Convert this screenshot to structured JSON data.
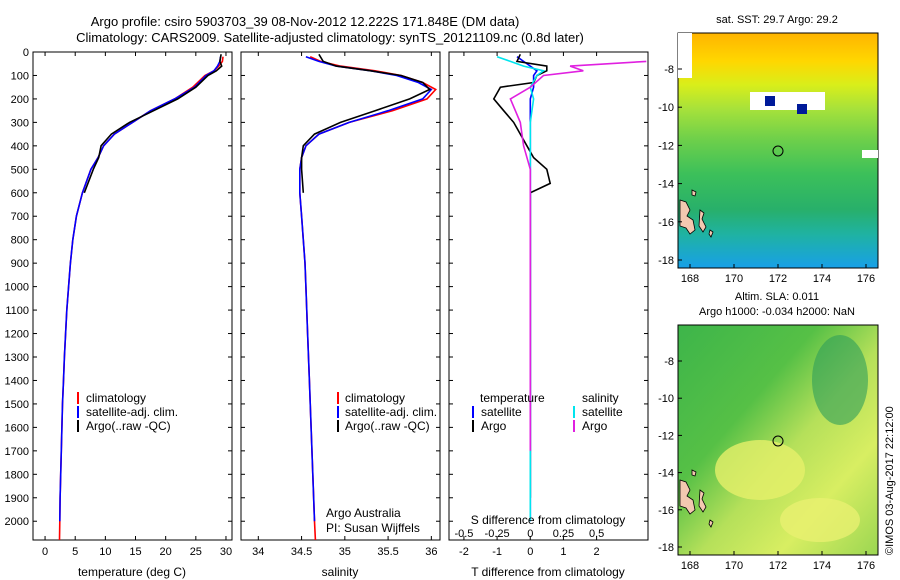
{
  "header": {
    "line1": "Argo profile: csiro 5903703_39 08-Nov-2012 12.222S 171.848E (DM data)",
    "line2": "Climatology: CARS2009. Satellite-adjusted climatology: synTS_20121109.nc (0.8d later)"
  },
  "depth_ticks": [
    0,
    100,
    200,
    300,
    400,
    500,
    600,
    700,
    800,
    900,
    1000,
    1100,
    1200,
    1300,
    1400,
    1500,
    1600,
    1700,
    1800,
    1900,
    2000
  ],
  "colors": {
    "climatology": "#ff0000",
    "satellite": "#0000ff",
    "argo": "#000000",
    "salinity_sat": "#00e5ee",
    "salinity_argo": "#e020e0"
  },
  "legend_ts": {
    "climatology": "climatology",
    "satellite": "satellite-adj. clim.",
    "argo": "Argo(..raw -QC)"
  },
  "legend_diff": {
    "temperature": "temperature",
    "salinity": "salinity",
    "satellite": "satellite",
    "argo": "Argo"
  },
  "annotation": {
    "org": "Argo Australia",
    "pi": "PI: Susan Wijffels"
  },
  "maps": {
    "sst_title": "sat. SST: 29.7 Argo: 29.2",
    "sla_title1": "Altim. SLA: 0.011",
    "sla_title2": "Argo h1000: -0.034 h2000: NaN",
    "x_ticks": [
      "168",
      "170",
      "172",
      "174",
      "176"
    ],
    "y_ticks": [
      "-8",
      "-10",
      "-12",
      "-14",
      "-16",
      "-18"
    ],
    "float_marker": "circle"
  },
  "side_label": "©IMOS 03-Aug-2017 22:12:00",
  "chart_data": [
    {
      "type": "line",
      "name": "temperature",
      "xlabel": "temperature (deg C)",
      "ylabel": "",
      "xlim": [
        -2,
        31
      ],
      "ylim": [
        2080,
        0
      ],
      "xticks": [
        0,
        5,
        10,
        15,
        20,
        25,
        30
      ],
      "series": [
        {
          "name": "climatology",
          "color": "#ff0000",
          "points": [
            [
              29.5,
              20
            ],
            [
              29.4,
              40
            ],
            [
              28.8,
              60
            ],
            [
              28.0,
              80
            ],
            [
              26.5,
              100
            ],
            [
              24.5,
              150
            ],
            [
              21.5,
              200
            ],
            [
              17.5,
              250
            ],
            [
              14.5,
              300
            ],
            [
              11.5,
              350
            ],
            [
              9.7,
              400
            ],
            [
              8.8,
              450
            ],
            [
              7.6,
              500
            ],
            [
              6.2,
              600
            ],
            [
              5.2,
              700
            ],
            [
              4.6,
              800
            ],
            [
              4.2,
              900
            ],
            [
              3.9,
              1000
            ],
            [
              3.6,
              1100
            ],
            [
              3.4,
              1200
            ],
            [
              3.2,
              1300
            ],
            [
              3.05,
              1400
            ],
            [
              2.9,
              1500
            ],
            [
              2.8,
              1600
            ],
            [
              2.7,
              1700
            ],
            [
              2.6,
              1800
            ],
            [
              2.5,
              1900
            ],
            [
              2.45,
              2000
            ],
            [
              2.4,
              2080
            ]
          ]
        },
        {
          "name": "satellite-adj. clim.",
          "color": "#0000ff",
          "points": [
            [
              29.1,
              20
            ],
            [
              29.0,
              40
            ],
            [
              28.6,
              60
            ],
            [
              28.0,
              80
            ],
            [
              26.7,
              100
            ],
            [
              24.8,
              150
            ],
            [
              21.5,
              200
            ],
            [
              17.5,
              250
            ],
            [
              14.5,
              300
            ],
            [
              11.5,
              350
            ],
            [
              9.7,
              400
            ],
            [
              8.8,
              450
            ],
            [
              7.6,
              500
            ],
            [
              6.2,
              600
            ],
            [
              5.2,
              700
            ],
            [
              4.6,
              800
            ],
            [
              4.2,
              900
            ],
            [
              3.9,
              1000
            ],
            [
              3.6,
              1100
            ],
            [
              3.4,
              1200
            ],
            [
              3.2,
              1300
            ],
            [
              3.05,
              1400
            ],
            [
              2.9,
              1500
            ],
            [
              2.8,
              1600
            ],
            [
              2.7,
              1700
            ],
            [
              2.6,
              1800
            ],
            [
              2.5,
              1900
            ],
            [
              2.45,
              2000
            ]
          ]
        },
        {
          "name": "Argo(..raw -QC)",
          "color": "#000000",
          "points": [
            [
              29.2,
              10
            ],
            [
              29.0,
              40
            ],
            [
              29.3,
              60
            ],
            [
              28.4,
              80
            ],
            [
              27.0,
              100
            ],
            [
              25.0,
              150
            ],
            [
              22.0,
              200
            ],
            [
              18.0,
              250
            ],
            [
              14.0,
              300
            ],
            [
              11.0,
              350
            ],
            [
              9.3,
              400
            ],
            [
              8.9,
              450
            ],
            [
              8.0,
              500
            ],
            [
              6.5,
              600
            ]
          ]
        }
      ]
    },
    {
      "type": "line",
      "name": "salinity",
      "xlabel": "salinity",
      "ylabel": "",
      "xlim": [
        33.8,
        36.1
      ],
      "ylim": [
        2080,
        0
      ],
      "xticks": [
        34,
        34.5,
        35,
        35.5,
        36
      ],
      "series": [
        {
          "name": "climatology",
          "color": "#ff0000",
          "points": [
            [
              34.6,
              20
            ],
            [
              34.72,
              40
            ],
            [
              34.95,
              60
            ],
            [
              35.35,
              80
            ],
            [
              35.65,
              100
            ],
            [
              35.9,
              130
            ],
            [
              36.05,
              160
            ],
            [
              35.95,
              200
            ],
            [
              35.55,
              250
            ],
            [
              35.05,
              300
            ],
            [
              34.7,
              350
            ],
            [
              34.55,
              400
            ],
            [
              34.5,
              450
            ],
            [
              34.48,
              500
            ],
            [
              34.48,
              600
            ],
            [
              34.5,
              700
            ],
            [
              34.52,
              800
            ],
            [
              34.54,
              900
            ],
            [
              34.55,
              1000
            ],
            [
              34.57,
              1200
            ],
            [
              34.59,
              1400
            ],
            [
              34.61,
              1600
            ],
            [
              34.63,
              1800
            ],
            [
              34.65,
              2000
            ],
            [
              34.66,
              2080
            ]
          ]
        },
        {
          "name": "satellite-adj. clim.",
          "color": "#0000ff",
          "points": [
            [
              34.55,
              20
            ],
            [
              34.7,
              40
            ],
            [
              34.9,
              60
            ],
            [
              35.3,
              80
            ],
            [
              35.6,
              100
            ],
            [
              35.85,
              130
            ],
            [
              36.0,
              160
            ],
            [
              35.9,
              200
            ],
            [
              35.5,
              250
            ],
            [
              35.05,
              300
            ],
            [
              34.7,
              350
            ],
            [
              34.55,
              400
            ],
            [
              34.5,
              450
            ],
            [
              34.48,
              500
            ],
            [
              34.48,
              600
            ],
            [
              34.5,
              700
            ],
            [
              34.52,
              800
            ],
            [
              34.54,
              900
            ],
            [
              34.55,
              1000
            ],
            [
              34.57,
              1200
            ],
            [
              34.59,
              1400
            ],
            [
              34.61,
              1600
            ],
            [
              34.63,
              1800
            ],
            [
              34.65,
              2000
            ]
          ]
        },
        {
          "name": "Argo(..raw -QC)",
          "color": "#000000",
          "points": [
            [
              34.7,
              10
            ],
            [
              34.75,
              40
            ],
            [
              34.9,
              60
            ],
            [
              35.3,
              80
            ],
            [
              35.65,
              100
            ],
            [
              35.9,
              130
            ],
            [
              35.98,
              160
            ],
            [
              35.75,
              200
            ],
            [
              35.35,
              250
            ],
            [
              34.95,
              300
            ],
            [
              34.65,
              350
            ],
            [
              34.52,
              400
            ],
            [
              34.5,
              450
            ],
            [
              34.5,
              500
            ],
            [
              34.52,
              600
            ]
          ]
        }
      ]
    },
    {
      "type": "line",
      "name": "difference",
      "xlabel": "T difference from climatology",
      "xlabel2": "S difference from climatology",
      "xlim": [
        -2.45,
        3.55
      ],
      "ylim": [
        2080,
        0
      ],
      "xticks": [
        -2,
        -1,
        0,
        1,
        2
      ],
      "xticks_s": [
        "-0.5",
        "-0.25",
        "0",
        "0.25",
        "0.5"
      ],
      "xticks_s_pos": [
        -2,
        -1,
        0,
        1,
        2
      ],
      "series": [
        {
          "name": "temperature satellite",
          "color": "#0000ff",
          "points": [
            [
              -0.4,
              20
            ],
            [
              -0.2,
              40
            ],
            [
              0.0,
              60
            ],
            [
              0.2,
              80
            ],
            [
              0.1,
              100
            ],
            [
              0.1,
              150
            ],
            [
              0.0,
              200
            ],
            [
              0.0,
              300
            ],
            [
              0.0,
              500
            ],
            [
              0.0,
              1000
            ],
            [
              0.0,
              1500
            ],
            [
              0.0,
              2000
            ]
          ]
        },
        {
          "name": "temperature Argo",
          "color": "#000000",
          "points": [
            [
              -0.3,
              10
            ],
            [
              -0.4,
              40
            ],
            [
              0.5,
              60
            ],
            [
              0.5,
              80
            ],
            [
              0.2,
              100
            ],
            [
              0.1,
              130
            ],
            [
              -0.9,
              150
            ],
            [
              -1.1,
              200
            ],
            [
              -0.8,
              250
            ],
            [
              -0.5,
              300
            ],
            [
              -0.3,
              350
            ],
            [
              -0.1,
              400
            ],
            [
              0.1,
              450
            ],
            [
              0.5,
              500
            ],
            [
              0.6,
              560
            ],
            [
              0.0,
              600
            ],
            [
              0.0,
              700
            ],
            [
              0.0,
              900
            ],
            [
              0.0,
              1200
            ],
            [
              0.0,
              1500
            ],
            [
              0.0,
              1800
            ],
            [
              0.0,
              1900
            ]
          ]
        },
        {
          "name": "salinity satellite",
          "color": "#00e5ee",
          "points": [
            [
              -1.0,
              20
            ],
            [
              -0.6,
              40
            ],
            [
              -0.2,
              60
            ],
            [
              0.4,
              80
            ],
            [
              0.2,
              100
            ],
            [
              0.0,
              150
            ],
            [
              0.1,
              200
            ],
            [
              0.0,
              300
            ],
            [
              0.0,
              500
            ],
            [
              0.0,
              1000
            ],
            [
              0.0,
              1500
            ],
            [
              0.0,
              2000
            ]
          ]
        },
        {
          "name": "salinity Argo",
          "color": "#e020e0",
          "points": [
            [
              3.5,
              40
            ],
            [
              1.2,
              60
            ],
            [
              1.6,
              80
            ],
            [
              0.4,
              100
            ],
            [
              0.0,
              150
            ],
            [
              -0.6,
              200
            ],
            [
              -0.3,
              300
            ],
            [
              -0.2,
              400
            ],
            [
              0.0,
              500
            ],
            [
              0.0,
              1000
            ],
            [
              0.0,
              1500
            ],
            [
              0.0,
              1700
            ]
          ]
        }
      ]
    }
  ]
}
